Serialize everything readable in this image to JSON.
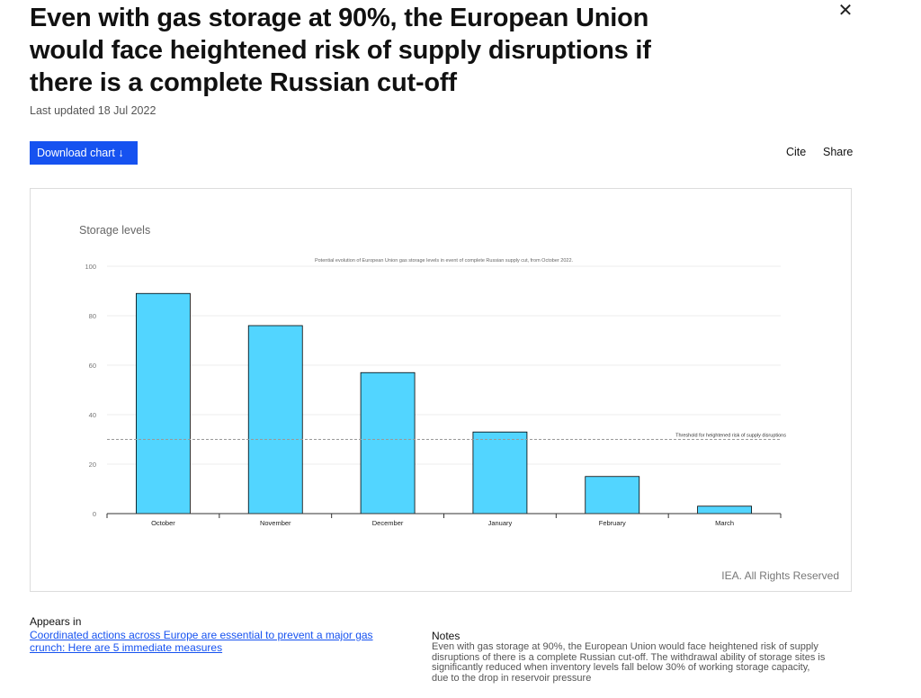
{
  "page": {
    "title": "Even with gas storage at 90%, the European Union would face heightened risk of supply disruptions if there is a complete Russian cut-off",
    "last_updated": "Last updated 18 Jul 2022",
    "close_icon": "close-icon"
  },
  "toolbar": {
    "download_label": "Download chart ↓",
    "cite_label": "Cite",
    "share_label": "Share"
  },
  "chart_data": {
    "type": "bar",
    "title": "Potential evolution of European Union gas storage levels in event of complete Russian supply cut, from October 2022.",
    "ylabel": "Storage levels",
    "xlabel": "",
    "categories": [
      "October",
      "November",
      "December",
      "January",
      "February",
      "March"
    ],
    "values": [
      89,
      76,
      57,
      33,
      15,
      3
    ],
    "ylim": [
      0,
      100
    ],
    "yticks": [
      0,
      20,
      40,
      60,
      80,
      100
    ],
    "grid": true,
    "bar_color": "#52d5ff",
    "threshold": {
      "value": 30,
      "label": "Threshold for heightened risk of supply disruptions"
    },
    "credit": "IEA. All Rights Reserved"
  },
  "footer": {
    "appears_in_label": "Appears in",
    "appears_in_link": "Coordinated actions across Europe are essential to prevent a major gas crunch: Here are 5 immediate measures",
    "notes_label": "Notes",
    "notes_text": "Even with gas storage at 90%, the European Union would face heightened risk of supply disruptions of there is a complete Russian cut-off. The withdrawal ability of storage sites is significantly reduced when inventory levels fall below 30% of working storage capacity, due to the drop in reservoir pressure"
  }
}
